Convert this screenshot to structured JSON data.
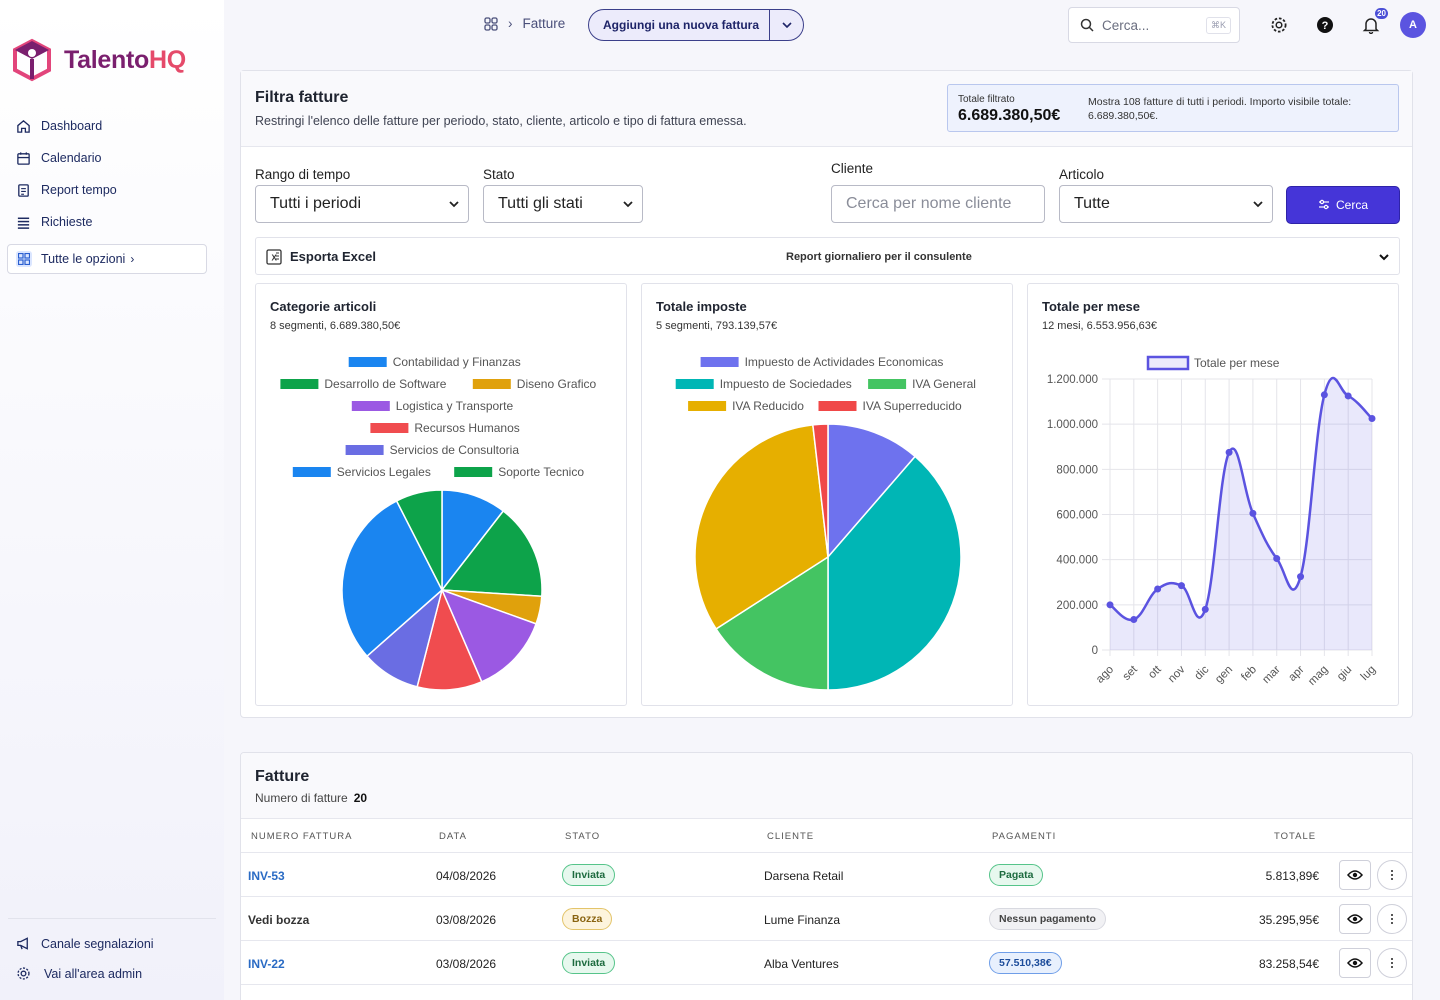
{
  "brand": {
    "name_main": "Talento",
    "name_accent": "HQ"
  },
  "sidebar": {
    "items": [
      {
        "label": "Dashboard",
        "icon": "home-icon"
      },
      {
        "label": "Calendario",
        "icon": "calendar-icon"
      },
      {
        "label": "Report tempo",
        "icon": "report-icon"
      },
      {
        "label": "Richieste",
        "icon": "list-icon"
      }
    ],
    "all_options": "Tutte le opzioni",
    "bottom": [
      {
        "label": "Canale segnalazioni",
        "icon": "megaphone-icon"
      },
      {
        "label": "Vai all'area admin",
        "icon": "gear-icon"
      }
    ]
  },
  "topbar": {
    "breadcrumb": "Fatture",
    "new_invoice": "Aggiungi una nuova fattura",
    "search_placeholder": "Cerca...",
    "search_kbd": "⌘K",
    "notifications": "20",
    "avatar": "A"
  },
  "filters": {
    "title": "Filtra fatture",
    "subtitle": "Restringi l'elenco delle fatture per periodo, stato, cliente, articolo e tipo di fattura emessa.",
    "total_label": "Totale filtrato",
    "total_value": "6.689.380,50€",
    "total_desc": "Mostra 108 fatture di tutti i periodi. Importo visibile totale: 6.689.380,50€.",
    "range_label": "Rango di tempo",
    "range_value": "Tutti i periodi",
    "status_label": "Stato",
    "status_value": "Tutti gli stati",
    "client_label": "Cliente",
    "client_placeholder": "Cerca per nome cliente",
    "article_label": "Articolo",
    "article_value": "Tutte",
    "search_button": "Cerca",
    "export_label": "Esporta Excel",
    "report_label": "Report giornaliero per il consulente"
  },
  "chart_data": [
    {
      "type": "pie",
      "title": "Categorie articoli",
      "subtitle": "8 segmenti, 6.689.380,50€",
      "categories": [
        "Contabilidad y Finanzas",
        "Desarrollo de Software",
        "Diseno Grafico",
        "Logistica y Transporte",
        "Recursos Humanos",
        "Servicios de Consultoria",
        "Servicios Legales",
        "Soporte Tecnico"
      ],
      "values": [
        10.5,
        15.5,
        4.5,
        13.0,
        10.5,
        9.5,
        29.0,
        7.5
      ],
      "colors": [
        "#1a85f0",
        "#0da34a",
        "#e0a10c",
        "#9b59e3",
        "#f04c4f",
        "#6a6de3",
        "#1a85f0",
        "#0da34a"
      ],
      "legend": "top"
    },
    {
      "type": "pie",
      "title": "Totale imposte",
      "subtitle": "5 segmenti, 793.139,57€",
      "categories": [
        "Impuesto de Actividades Economicas",
        "Impuesto de Sociedades",
        "IVA General",
        "IVA Reducido",
        "IVA Superreducido"
      ],
      "values": [
        12.5,
        42.5,
        17.5,
        35.5,
        2.0
      ],
      "colors": [
        "#6e72ee",
        "#00b6b5",
        "#44c462",
        "#e6af00",
        "#f04848"
      ],
      "legend": "top"
    },
    {
      "type": "area",
      "title": "Totale per mese",
      "subtitle": "12 mesi, 6.553.956,63€",
      "series": [
        {
          "name": "Totale per mese",
          "values": [
            200000,
            135000,
            270000,
            285000,
            180000,
            875000,
            605000,
            405000,
            325000,
            1130000,
            1125000,
            1025000
          ]
        }
      ],
      "categories": [
        "ago",
        "set",
        "ott",
        "nov",
        "dic",
        "gen",
        "feb",
        "mar",
        "apr",
        "mag",
        "giu",
        "lug"
      ],
      "ylim": [
        0,
        1200000
      ],
      "yticks": [
        "1.200.000",
        "1.000.000",
        "800.000",
        "600.000",
        "400.000",
        "200.000",
        "0"
      ],
      "grid": true,
      "legend": "top",
      "color": "#5b53e0"
    }
  ],
  "table": {
    "title": "Fatture",
    "count_label": "Numero di fatture",
    "count": "20",
    "headers": [
      "NUMERO FATTURA",
      "DATA",
      "STATO",
      "CLIENTE",
      "PAGAMENTI",
      "TOTALE"
    ],
    "rows": [
      {
        "number": "INV-53",
        "date": "04/08/2026",
        "status": "Inviata",
        "client": "Darsena Retail",
        "payment": "Pagata",
        "total": "5.813,89€"
      },
      {
        "number": "Vedi bozza",
        "date": "03/08/2026",
        "status": "Bozza",
        "client": "Lume Finanza",
        "payment": "Nessun pagamento",
        "total": "35.295,95€"
      },
      {
        "number": "INV-22",
        "date": "03/08/2026",
        "status": "Inviata",
        "client": "Alba Ventures",
        "payment": "57.510,38€",
        "total": "83.258,54€"
      }
    ]
  }
}
